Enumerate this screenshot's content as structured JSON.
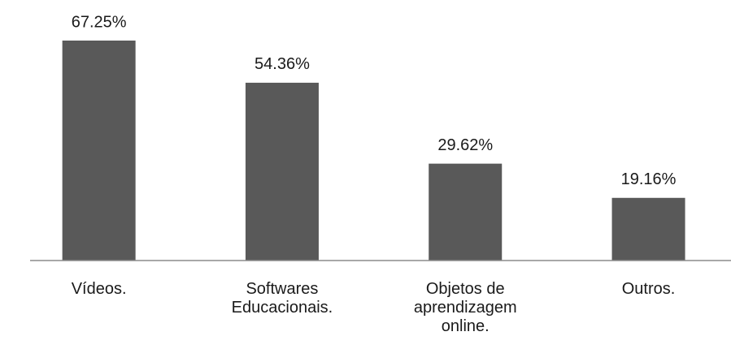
{
  "chart_data": {
    "type": "bar",
    "categories": [
      "Vídeos.",
      "Softwares Educacionais.",
      "Objetos de aprendizagem online.",
      "Outros."
    ],
    "values": [
      67.25,
      54.36,
      29.62,
      19.16
    ],
    "value_labels": [
      "67.25%",
      "54.36%",
      "29.62%",
      "19.16%"
    ],
    "color": "#595959"
  }
}
